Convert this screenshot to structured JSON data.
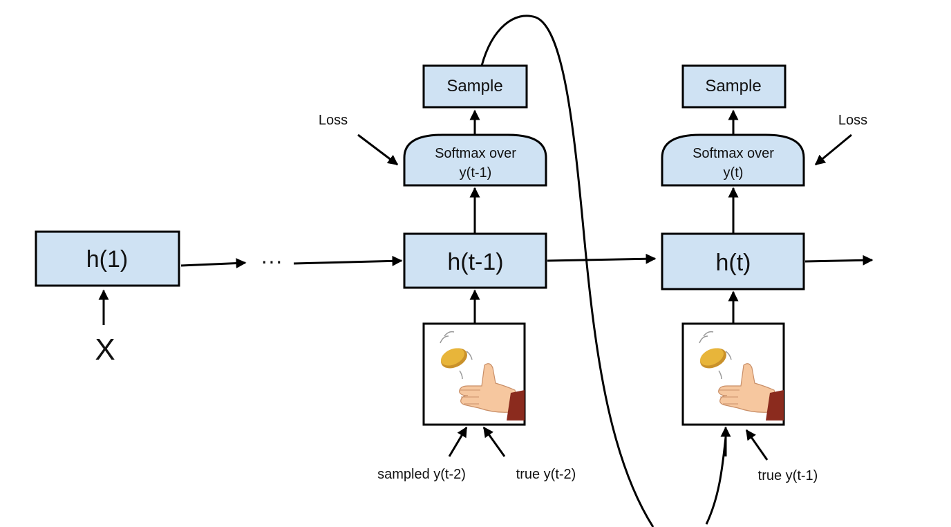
{
  "diagram": {
    "h1_label": "h(1)",
    "x_label": "X",
    "ellipsis": "···",
    "left_step": {
      "hidden_label": "h(t-1)",
      "softmax_line1": "Softmax over",
      "softmax_line2": "y(t-1)",
      "sample_label": "Sample",
      "loss_label": "Loss",
      "input_sampled_label": "sampled y(t-2)",
      "input_true_label": "true y(t-2)"
    },
    "right_step": {
      "hidden_label": "h(t)",
      "softmax_line1": "Softmax over",
      "softmax_line2": "y(t)",
      "sample_label": "Sample",
      "loss_label": "Loss",
      "input_true_label": "true y(t-1)"
    },
    "coin_flip_icon": "coin-flip-icon",
    "colors": {
      "box_fill": "#cfe2f3",
      "stroke": "#000000",
      "coin": "#e8b53a",
      "skin": "#f6c79f",
      "sleeve": "#8b2b1e"
    }
  }
}
